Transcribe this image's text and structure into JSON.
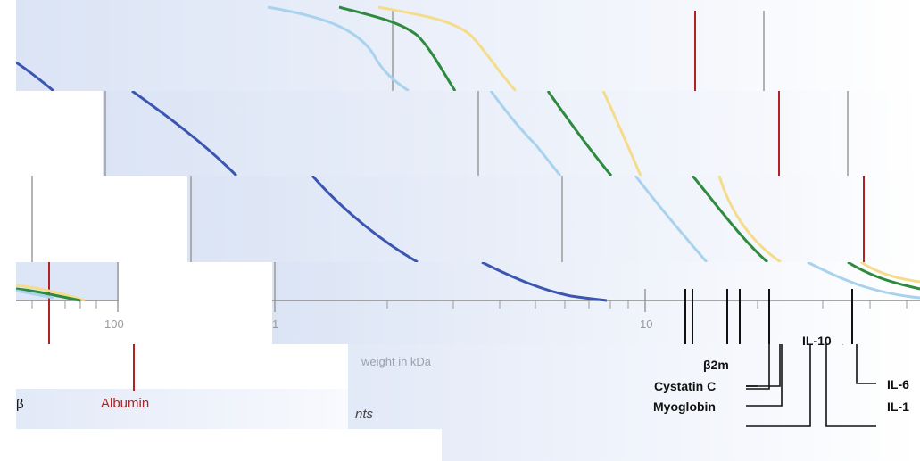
{
  "chart_data": {
    "type": "line",
    "x_scale": "log",
    "xlabel_visible": "weight in kDa",
    "tick_labels": [
      "100",
      "1",
      "10"
    ],
    "molecule_labels": [
      "β2m",
      "Cystatin C",
      "Myoglobin",
      "IL-10",
      "IL-6",
      "IL-1",
      "Albumin",
      "β"
    ],
    "italic_fragment": "nts",
    "series": [
      {
        "color": "#3a56b0",
        "x": [
          0.5,
          1.0,
          2.0,
          3.0,
          5.0,
          7.0,
          8.0
        ],
        "y": [
          0.94,
          0.78,
          0.56,
          0.4,
          0.16,
          0.02,
          0.0
        ]
      },
      {
        "color": "#a9d2ee",
        "x": [
          2,
          3,
          5,
          8,
          15,
          25,
          50,
          80
        ],
        "y": [
          1.0,
          0.92,
          0.7,
          0.42,
          0.16,
          0.06,
          0.02,
          0.0
        ]
      },
      {
        "color": "#2e8a3e",
        "x": [
          3,
          5,
          8,
          15,
          25,
          40,
          60,
          80
        ],
        "y": [
          1.0,
          0.95,
          0.7,
          0.4,
          0.16,
          0.08,
          0.03,
          0.0
        ]
      },
      {
        "color": "#f5dc8a",
        "x": [
          3,
          6,
          10,
          18,
          30,
          50,
          70,
          85
        ],
        "y": [
          1.0,
          0.97,
          0.72,
          0.46,
          0.22,
          0.1,
          0.04,
          0.0
        ]
      }
    ],
    "markers": [
      {
        "name": "Albumin",
        "x": 66,
        "color": "#b22222"
      }
    ],
    "colors": {
      "axis": "#8a8a8a",
      "gridline": "#a0a0a0",
      "albumin": "#b22222",
      "bg_panel_left": "#dde6f6",
      "bg_panel_right": "#f6f8fd"
    }
  }
}
